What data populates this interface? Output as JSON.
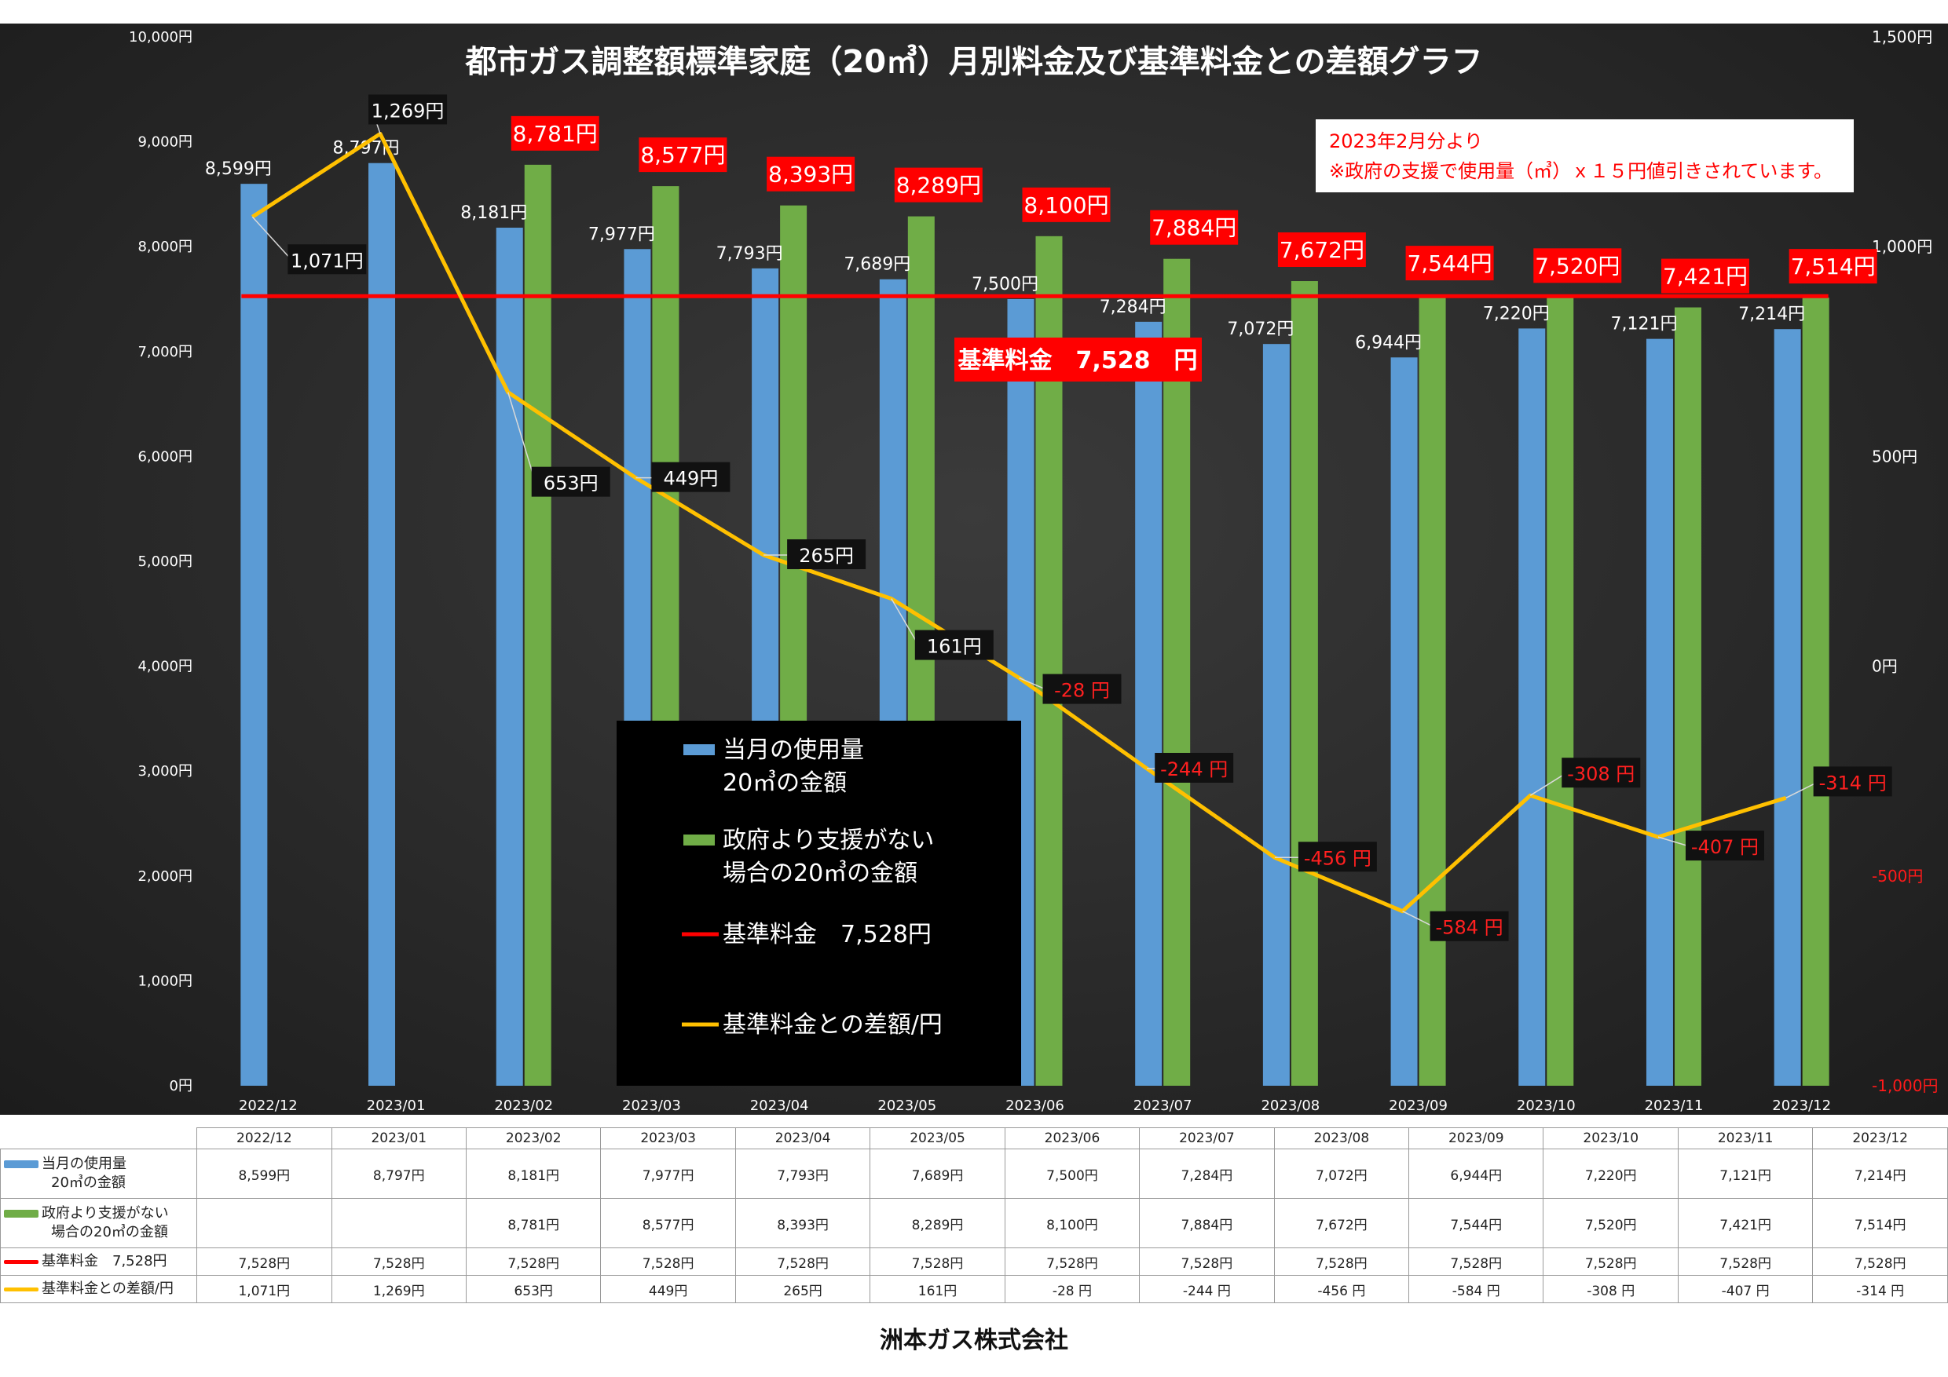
{
  "chart_data": {
    "type": "bar",
    "title": "都市ガス調整額標準家庭（20㎥）月別料金及び基準料金との差額グラフ",
    "categories": [
      "2022/12",
      "2023/01",
      "2023/02",
      "2023/03",
      "2023/04",
      "2023/05",
      "2023/06",
      "2023/07",
      "2023/08",
      "2023/09",
      "2023/10",
      "2023/11",
      "2023/12"
    ],
    "left_axis": {
      "ylim": [
        0,
        10000
      ],
      "ticks": [
        "0円",
        "1,000円",
        "2,000円",
        "3,000円",
        "4,000円",
        "5,000円",
        "6,000円",
        "7,000円",
        "8,000円",
        "9,000円",
        "10,000円"
      ]
    },
    "right_axis": {
      "ylim": [
        -1000,
        1500
      ],
      "ticks": [
        "-1,000円",
        "-500円",
        "0円",
        "500円",
        "1,000円",
        "1,500円"
      ]
    },
    "series": [
      {
        "name": "当月の使用量20㎥の金額",
        "kind": "bar",
        "axis": "left",
        "color": "#5b9bd5",
        "values": [
          8599,
          8797,
          8181,
          7977,
          7793,
          7689,
          7500,
          7284,
          7072,
          6944,
          7220,
          7121,
          7214
        ],
        "labels": [
          "8,599円",
          "8,797円",
          "8,181円",
          "7,977円",
          "7,793円",
          "7,689円",
          "7,500円",
          "7,284円",
          "7,072円",
          "6,944円",
          "7,220円",
          "7,121円",
          "7,214円"
        ]
      },
      {
        "name": "政府より支援がない場合の20㎥の金額",
        "kind": "bar",
        "axis": "left",
        "color": "#70ad47",
        "values": [
          null,
          null,
          8781,
          8577,
          8393,
          8289,
          8100,
          7884,
          7672,
          7544,
          7520,
          7421,
          7514
        ],
        "labels": [
          "",
          "",
          "8,781円",
          "8,577円",
          "8,393円",
          "8,289円",
          "8,100円",
          "7,884円",
          "7,672円",
          "7,544円",
          "7,520円",
          "7,421円",
          "7,514円"
        ]
      },
      {
        "name": "基準料金　7,528円",
        "kind": "line",
        "axis": "left",
        "color": "#ff0000",
        "values": [
          7528,
          7528,
          7528,
          7528,
          7528,
          7528,
          7528,
          7528,
          7528,
          7528,
          7528,
          7528,
          7528
        ]
      },
      {
        "name": "基準料金との差額/円",
        "kind": "line",
        "axis": "right",
        "color": "#ffc000",
        "values": [
          1071,
          1269,
          653,
          449,
          265,
          161,
          -28,
          -244,
          -456,
          -584,
          -308,
          -407,
          -314
        ],
        "labels": [
          "1,071円",
          "1,269円",
          "653円",
          "449円",
          "265円",
          "161円",
          "-28 円",
          "-244 円",
          "-456 円",
          "-584 円",
          "-308 円",
          "-407 円",
          "-314 円"
        ]
      }
    ],
    "legend": {
      "placement": "center",
      "items": [
        {
          "color": "#5b9bd5",
          "line1": "当月の使用量",
          "line2": "20㎥の金額",
          "kind": "bar"
        },
        {
          "color": "#70ad47",
          "line1": "政府より支援がない",
          "line2": "場合の20㎥の金額",
          "kind": "bar"
        },
        {
          "color": "#ff0000",
          "line1": "基準料金　7,528円",
          "line2": "",
          "kind": "line"
        },
        {
          "color": "#ffc000",
          "line1": "基準料金との差額/円",
          "line2": "",
          "kind": "line"
        }
      ]
    },
    "notice": {
      "line1": "2023年2月分より",
      "line2": "※政府の支援で使用量（㎥）ｘ１５円値引きされています。"
    },
    "base_label": "基準料金　7,528　円"
  },
  "table": {
    "columns": [
      "2022/12",
      "2023/01",
      "2023/02",
      "2023/03",
      "2023/04",
      "2023/05",
      "2023/06",
      "2023/07",
      "2023/08",
      "2023/09",
      "2023/10",
      "2023/11",
      "2023/12"
    ],
    "rows": [
      {
        "label1": "当月の使用量",
        "label2": "20㎥の金額",
        "color": "#5b9bd5",
        "cells": [
          "8,599円",
          "8,797円",
          "8,181円",
          "7,977円",
          "7,793円",
          "7,689円",
          "7,500円",
          "7,284円",
          "7,072円",
          "6,944円",
          "7,220円",
          "7,121円",
          "7,214円"
        ]
      },
      {
        "label1": "政府より支援がない",
        "label2": "場合の20㎥の金額",
        "color": "#70ad47",
        "cells": [
          "",
          "",
          "8,781円",
          "8,577円",
          "8,393円",
          "8,289円",
          "8,100円",
          "7,884円",
          "7,672円",
          "7,544円",
          "7,520円",
          "7,421円",
          "7,514円"
        ]
      },
      {
        "label1": "基準料金　7,528円",
        "label2": "",
        "color": "#ff0000",
        "cells": [
          "7,528円",
          "7,528円",
          "7,528円",
          "7,528円",
          "7,528円",
          "7,528円",
          "7,528円",
          "7,528円",
          "7,528円",
          "7,528円",
          "7,528円",
          "7,528円",
          "7,528円"
        ]
      },
      {
        "label1": "基準料金との差額/円",
        "label2": "",
        "color": "#ffc000",
        "cells": [
          "1,071円",
          "1,269円",
          "653円",
          "449円",
          "265円",
          "161円",
          "-28 円",
          "-244 円",
          "-456 円",
          "-584 円",
          "-308 円",
          "-407 円",
          "-314 円"
        ]
      }
    ]
  },
  "footer": {
    "company": "洲本ガス株式会社"
  }
}
